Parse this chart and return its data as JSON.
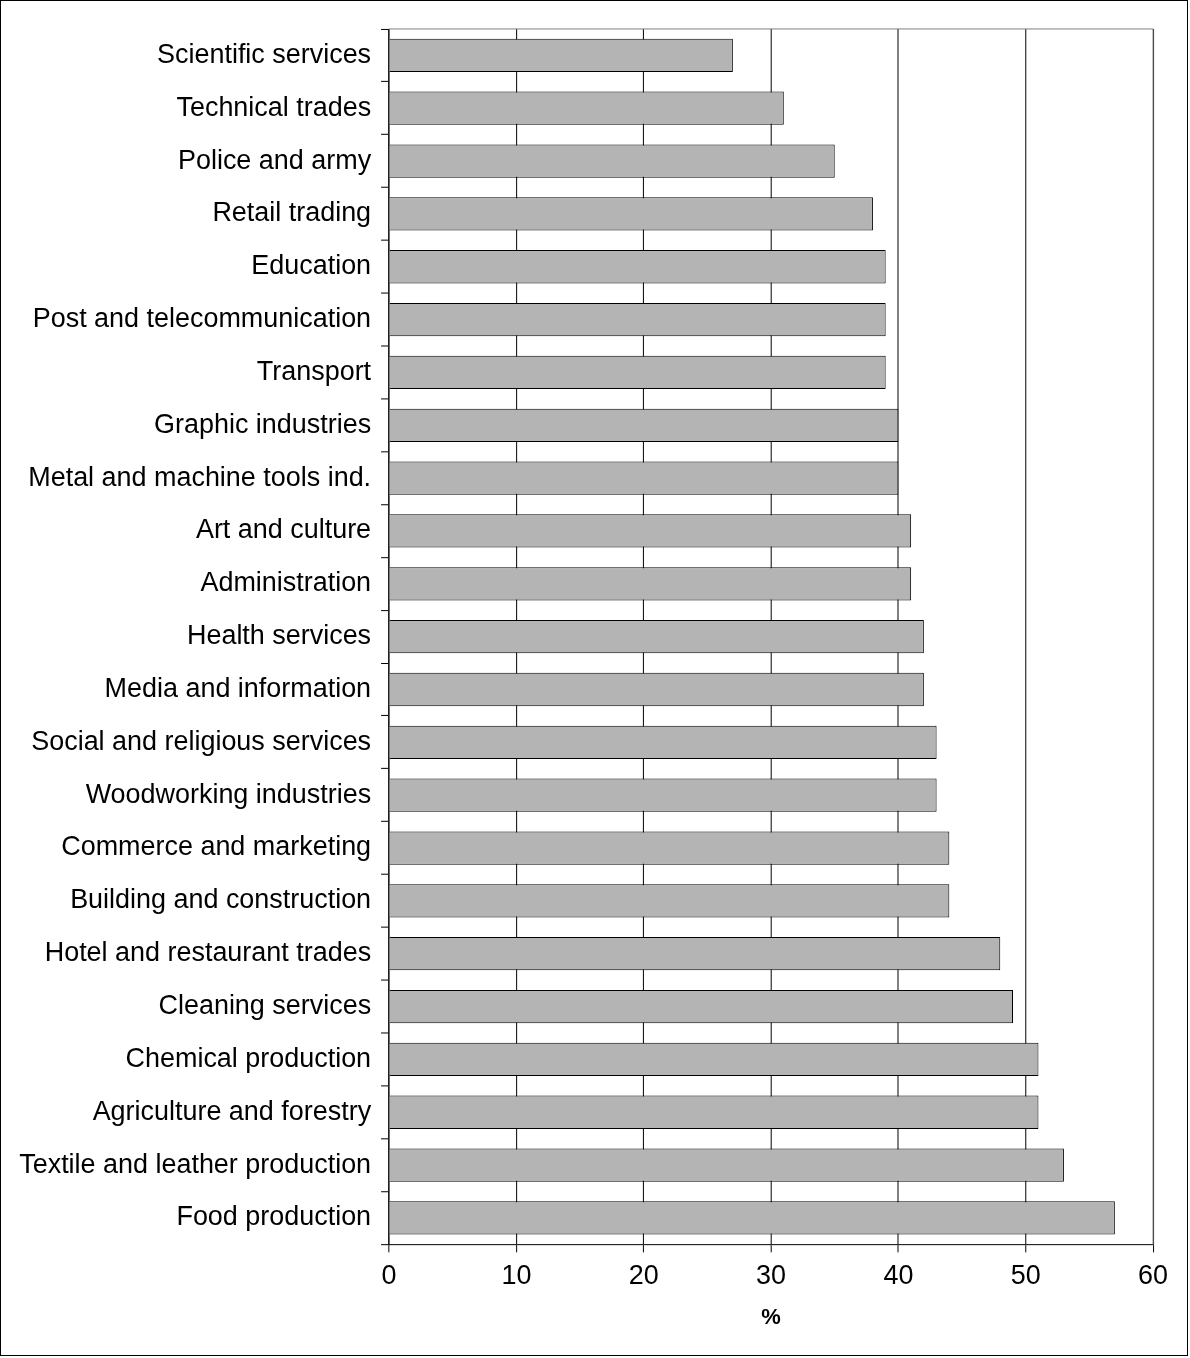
{
  "chart_data": {
    "type": "bar",
    "orientation": "horizontal",
    "xlabel": "%",
    "categories": [
      "Scientific services",
      "Technical trades",
      "Police and army",
      "Retail trading",
      "Education",
      "Post and telecommunication",
      "Transport",
      "Graphic industries",
      "Metal and machine tools ind.",
      "Art and culture",
      "Administration",
      "Health services",
      "Media and information",
      "Social and religious services",
      "Woodworking industries",
      "Commerce and marketing",
      "Building and construction",
      "Hotel and restaurant trades",
      "Cleaning services",
      "Chemical production",
      "Agriculture and forestry",
      "Textile and leather production",
      "Food production"
    ],
    "values": [
      27,
      31,
      35,
      38,
      39,
      39,
      39,
      40,
      40,
      41,
      41,
      42,
      42,
      43,
      43,
      44,
      44,
      48,
      49,
      51,
      51,
      53,
      57
    ],
    "color": "#b4b4b4",
    "xlim": [
      0,
      60
    ],
    "xticks": [
      0,
      10,
      20,
      30,
      40,
      50,
      60
    ],
    "grid": "x",
    "legend": false
  }
}
